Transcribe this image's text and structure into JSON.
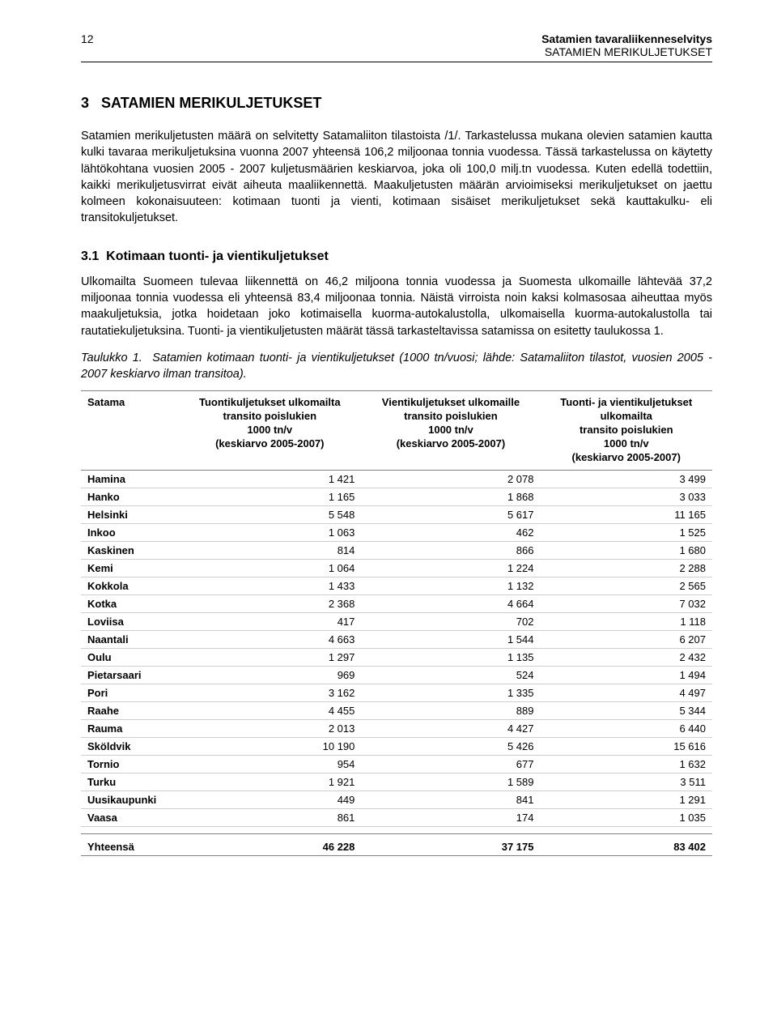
{
  "header": {
    "page_number": "12",
    "title": "Satamien tavaraliikenneselvitys",
    "subtitle": "SATAMIEN MERIKULJETUKSET"
  },
  "section": {
    "number": "3",
    "title": "SATAMIEN MERIKULJETUKSET"
  },
  "para1": "Satamien merikuljetusten määrä on selvitetty Satamaliiton tilastoista /1/. Tarkastelussa mukana olevien satamien kautta kulki tavaraa merikuljetuksina vuonna 2007 yhteensä 106,2 miljoonaa tonnia vuodessa. Tässä tarkastelussa on käytetty lähtökohtana vuosien 2005 - 2007 kuljetusmäärien keskiarvoa, joka oli 100,0 milj.tn vuodessa. Kuten edellä todettiin, kaikki merikuljetusvirrat eivät aiheuta maaliikennettä. Maakuljetusten määrän arvioimiseksi merikuljetukset on jaettu kolmeen kokonaisuuteen: kotimaan tuonti ja vienti, kotimaan sisäiset merikuljetukset sekä kauttakulku- eli transitokuljetukset.",
  "subsection": {
    "number": "3.1",
    "title": "Kotimaan tuonti- ja vientikuljetukset"
  },
  "para2": "Ulkomailta Suomeen tulevaa liikennettä on 46,2 miljoona tonnia vuodessa ja Suomesta ulkomaille lähtevää 37,2 miljoonaa tonnia vuodessa eli yhteensä 83,4 miljoonaa tonnia. Näistä virroista noin kaksi kolmasosaa aiheuttaa myös maakuljetuksia, jotka hoidetaan joko kotimaisella kuorma-autokalustolla, ulkomaisella kuorma-autokalustolla tai rautatiekuljetuksina. Tuonti- ja vientikuljetusten määrät tässä tarkasteltavissa satamissa on esitetty taulukossa 1.",
  "table_caption_label": "Taulukko 1.",
  "table_caption": "Satamien kotimaan tuonti- ja vientikuljetukset (1000 tn/vuosi; lähde: Satamaliiton tilastot, vuosien 2005 - 2007 keskiarvo ilman transitoa).",
  "table": {
    "columns": [
      "Satama",
      "Tuontikuljetukset ulkomailta transito poislukien 1000 tn/v (keskiarvo 2005-2007)",
      "Vientikuljetukset ulkomaille transito poislukien 1000 tn/v (keskiarvo 2005-2007)",
      "Tuonti- ja vientikuljetukset ulkomailta transito poislukien 1000 tn/v (keskiarvo 2005-2007)"
    ],
    "col_header_lines": [
      [
        "Satama"
      ],
      [
        "Tuontikuljetukset ulkomailta",
        "transito poislukien",
        "1000 tn/v",
        "(keskiarvo 2005-2007)"
      ],
      [
        "Vientikuljetukset ulkomaille",
        "transito poislukien",
        "1000 tn/v",
        "(keskiarvo 2005-2007)"
      ],
      [
        "Tuonti- ja vientikuljetukset",
        "ulkomailta",
        "transito poislukien",
        "1000 tn/v",
        "(keskiarvo 2005-2007)"
      ]
    ],
    "rows": [
      {
        "name": "Hamina",
        "imp": "1 421",
        "exp": "2 078",
        "tot": "3 499"
      },
      {
        "name": "Hanko",
        "imp": "1 165",
        "exp": "1 868",
        "tot": "3 033"
      },
      {
        "name": "Helsinki",
        "imp": "5 548",
        "exp": "5 617",
        "tot": "11 165"
      },
      {
        "name": "Inkoo",
        "imp": "1 063",
        "exp": "462",
        "tot": "1 525"
      },
      {
        "name": "Kaskinen",
        "imp": "814",
        "exp": "866",
        "tot": "1 680"
      },
      {
        "name": "Kemi",
        "imp": "1 064",
        "exp": "1 224",
        "tot": "2 288"
      },
      {
        "name": "Kokkola",
        "imp": "1 433",
        "exp": "1 132",
        "tot": "2 565"
      },
      {
        "name": "Kotka",
        "imp": "2 368",
        "exp": "4 664",
        "tot": "7 032"
      },
      {
        "name": "Loviisa",
        "imp": "417",
        "exp": "702",
        "tot": "1 118"
      },
      {
        "name": "Naantali",
        "imp": "4 663",
        "exp": "1 544",
        "tot": "6 207"
      },
      {
        "name": "Oulu",
        "imp": "1 297",
        "exp": "1 135",
        "tot": "2 432"
      },
      {
        "name": "Pietarsaari",
        "imp": "969",
        "exp": "524",
        "tot": "1 494"
      },
      {
        "name": "Pori",
        "imp": "3 162",
        "exp": "1 335",
        "tot": "4 497"
      },
      {
        "name": "Raahe",
        "imp": "4 455",
        "exp": "889",
        "tot": "5 344"
      },
      {
        "name": "Rauma",
        "imp": "2 013",
        "exp": "4 427",
        "tot": "6 440"
      },
      {
        "name": "Sköldvik",
        "imp": "10 190",
        "exp": "5 426",
        "tot": "15 616"
      },
      {
        "name": "Tornio",
        "imp": "954",
        "exp": "677",
        "tot": "1 632"
      },
      {
        "name": "Turku",
        "imp": "1 921",
        "exp": "1 589",
        "tot": "3 511"
      },
      {
        "name": "Uusikaupunki",
        "imp": "449",
        "exp": "841",
        "tot": "1 291"
      },
      {
        "name": "Vaasa",
        "imp": "861",
        "exp": "174",
        "tot": "1 035"
      }
    ],
    "total": {
      "name": "Yhteensä",
      "imp": "46 228",
      "exp": "37 175",
      "tot": "83 402"
    }
  },
  "colors": {
    "text": "#000000",
    "rule": "#000000",
    "row_border": "#cfcfcf",
    "header_border": "#808080",
    "background": "#ffffff"
  },
  "fonts": {
    "body_size_pt": 11,
    "heading_size_pt": 14,
    "table_size_pt": 10
  }
}
